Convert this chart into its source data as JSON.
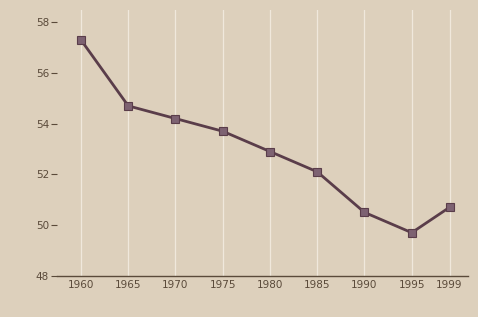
{
  "x": [
    1960,
    1965,
    1970,
    1975,
    1980,
    1985,
    1990,
    1995,
    1999
  ],
  "y": [
    57.3,
    54.7,
    54.2,
    53.7,
    52.9,
    52.1,
    50.5,
    49.7,
    50.7
  ],
  "line_color": "#5a3d4a",
  "marker_color": "#7d6272",
  "background_color": "#ddd0bc",
  "grid_color": "#f0e8dc",
  "tick_color": "#5a4a3a",
  "ylim": [
    48,
    58.5
  ],
  "xlim": [
    1957.5,
    2001
  ],
  "yticks": [
    48,
    50,
    52,
    54,
    56,
    58
  ],
  "xticks": [
    1960,
    1965,
    1970,
    1975,
    1980,
    1985,
    1990,
    1995,
    1999
  ]
}
